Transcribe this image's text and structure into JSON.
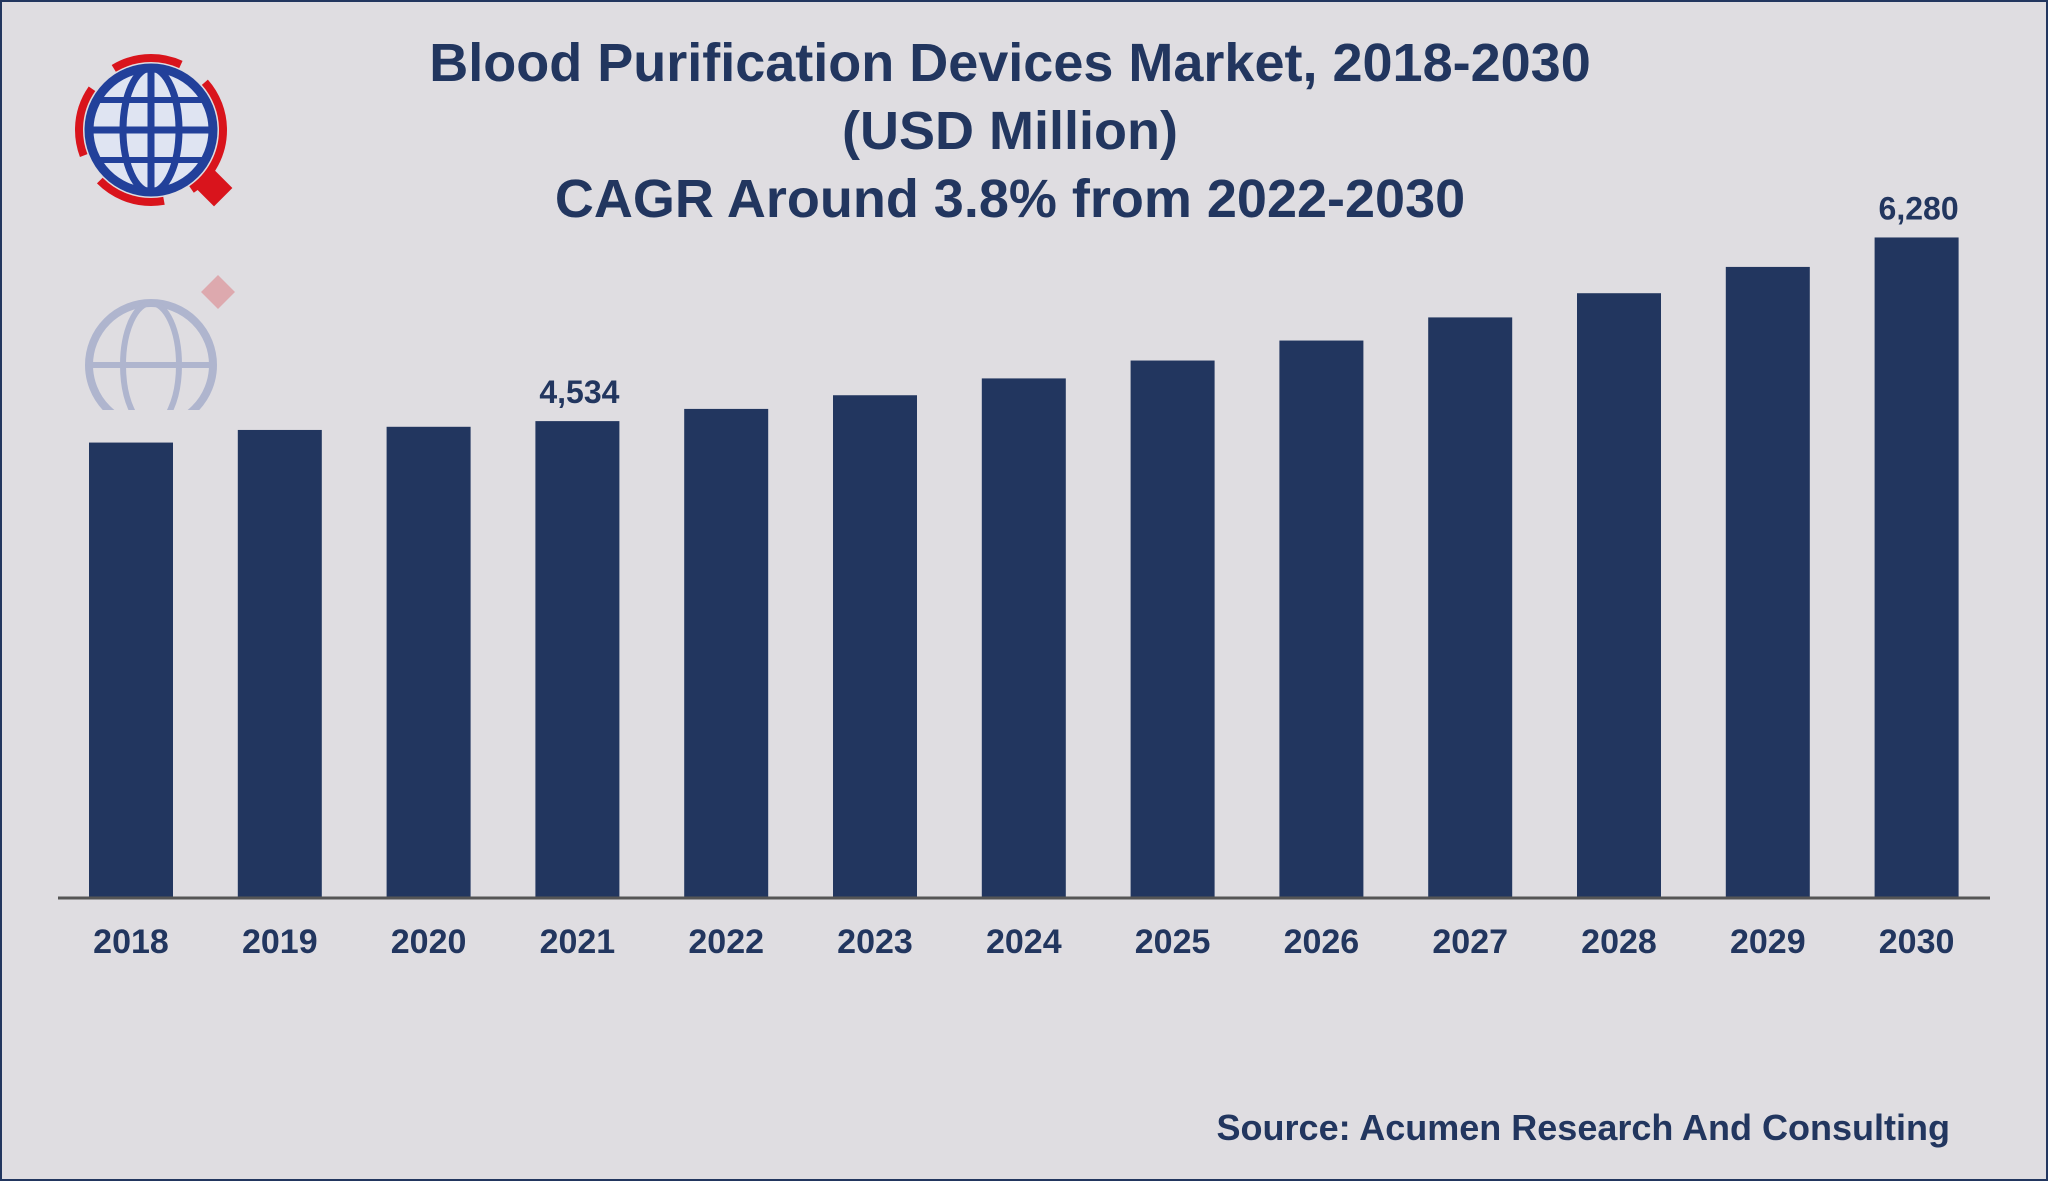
{
  "chart_data": {
    "type": "bar",
    "title": "Blood Purification Devices Market, 2018-2030",
    "subtitle_1": "(USD Million)",
    "subtitle_2": "CAGR Around 3.8% from 2022-2030",
    "categories": [
      "2018",
      "2019",
      "2020",
      "2021",
      "2022",
      "2023",
      "2024",
      "2025",
      "2026",
      "2027",
      "2028",
      "2029",
      "2030"
    ],
    "values": [
      4330,
      4450,
      4480,
      4534,
      4650,
      4780,
      4940,
      5110,
      5300,
      5520,
      5750,
      6000,
      6280
    ],
    "data_labels": {
      "3": "4,534",
      "12": "6,280"
    },
    "xlabel": "",
    "ylabel": "",
    "ylim": [
      0,
      6500
    ],
    "grid": false,
    "bar_color": "#22365f",
    "axis_color": "#555555"
  },
  "source": "Source: Acumen Research And Consulting",
  "logo": {
    "icon": "globe-arrows-logo",
    "colors": {
      "globe": "#22409a",
      "arrows": "#d9141c"
    }
  }
}
